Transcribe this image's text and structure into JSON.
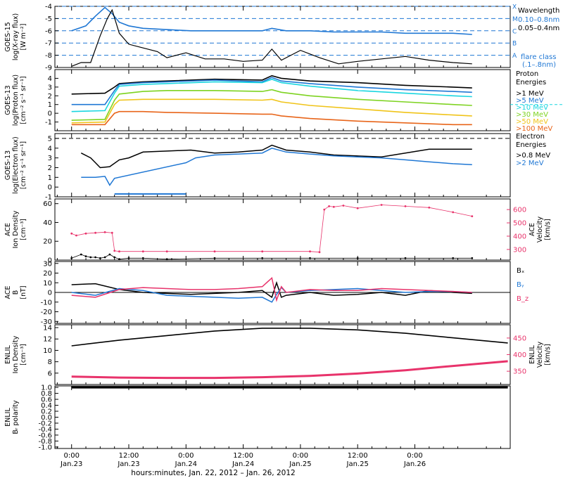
{
  "chart_data": [
    {
      "type": "line",
      "panel": "goes15_xray",
      "ylabel_lines": [
        "GOES-15",
        "log(X-ray flux)",
        "[W m⁻²]"
      ],
      "ylim": [
        -9,
        -4
      ],
      "yticks": [
        "-9",
        "-8",
        "-7",
        "-6",
        "-5",
        "-4"
      ],
      "flare_levels": [
        {
          "label": "A",
          "y": -8
        },
        {
          "label": "B",
          "y": -7
        },
        {
          "label": "C",
          "y": -6
        },
        {
          "label": "M",
          "y": -5
        },
        {
          "label": "X",
          "y": -4
        }
      ],
      "legend": {
        "title": "Wavelength",
        "entries": [
          "0.10–0.8nm",
          "0.05–0.4nm"
        ],
        "footer": [
          "flare class",
          "(.1–.8nm)"
        ]
      },
      "series": [
        {
          "name": "0.10–0.8nm",
          "color": "#1f77d4",
          "x": [
            0,
            6,
            10,
            14,
            17,
            20,
            24,
            30,
            40,
            50,
            60,
            70,
            80,
            84,
            90,
            100,
            110,
            120,
            130,
            140,
            150,
            160,
            168
          ],
          "y": [
            -6.0,
            -5.6,
            -4.8,
            -4.1,
            -4.6,
            -5.3,
            -5.6,
            -5.8,
            -5.9,
            -6.0,
            -6.0,
            -6.0,
            -6.0,
            -5.8,
            -6.0,
            -6.0,
            -6.1,
            -6.1,
            -6.1,
            -6.2,
            -6.2,
            -6.2,
            -6.3
          ]
        },
        {
          "name": "0.05–0.4nm",
          "color": "#000000",
          "x": [
            0,
            4,
            8,
            12,
            15,
            17,
            20,
            24,
            28,
            36,
            40,
            48,
            56,
            64,
            72,
            80,
            84,
            88,
            96,
            104,
            112,
            120,
            130,
            140,
            150,
            160,
            168
          ],
          "y": [
            -8.9,
            -8.6,
            -8.6,
            -6.4,
            -5.0,
            -4.3,
            -6.2,
            -7.1,
            -7.3,
            -7.7,
            -8.2,
            -7.8,
            -8.3,
            -8.3,
            -8.5,
            -8.4,
            -7.5,
            -8.4,
            -7.6,
            -8.2,
            -8.7,
            -8.5,
            -8.3,
            -8.1,
            -8.4,
            -8.6,
            -8.7
          ]
        }
      ]
    },
    {
      "type": "line",
      "panel": "goes13_proton",
      "ylabel_lines": [
        "GOES-13",
        "log(Proton flux)",
        "[cm⁻² s⁻¹ sr⁻¹]"
      ],
      "ylim": [
        -2,
        5
      ],
      "yticks": [
        "-1",
        "0",
        "1",
        "2",
        "3",
        "4"
      ],
      "legend": {
        "title": [
          "Proton",
          "Energies"
        ],
        "entries": [
          ">1 MeV",
          ">5 MeV",
          ">10 MeV",
          ">30 MeV",
          ">50 MeV",
          ">100 MeV"
        ]
      },
      "series": [
        {
          "name": ">1 MeV",
          "color": "#000000",
          "x": [
            0,
            14,
            18,
            20,
            30,
            40,
            60,
            80,
            84,
            88,
            100,
            120,
            140,
            160,
            168
          ],
          "y": [
            2.2,
            2.3,
            3.0,
            3.4,
            3.6,
            3.7,
            3.9,
            3.8,
            4.3,
            4.0,
            3.7,
            3.5,
            3.2,
            3.0,
            2.9
          ]
        },
        {
          "name": ">5 MeV",
          "color": "#1f77d4",
          "x": [
            0,
            14,
            18,
            20,
            30,
            40,
            60,
            80,
            84,
            88,
            100,
            120,
            140,
            160,
            168
          ],
          "y": [
            1.0,
            1.0,
            2.6,
            3.3,
            3.5,
            3.6,
            3.8,
            3.6,
            4.1,
            3.7,
            3.4,
            3.0,
            2.7,
            2.5,
            2.4
          ]
        },
        {
          "name": ">10 MeV",
          "color": "#19d6e0",
          "x": [
            0,
            14,
            18,
            20,
            30,
            40,
            60,
            80,
            84,
            88,
            100,
            120,
            140,
            160,
            168
          ],
          "y": [
            0.2,
            0.3,
            2.3,
            3.1,
            3.3,
            3.4,
            3.6,
            3.5,
            3.9,
            3.5,
            3.1,
            2.6,
            2.3,
            2.0,
            1.9
          ]
        },
        {
          "name": ">30 MeV",
          "color": "#7ed321",
          "x": [
            0,
            14,
            18,
            20,
            30,
            40,
            60,
            80,
            84,
            88,
            100,
            120,
            140,
            160,
            168
          ],
          "y": [
            -0.8,
            -0.7,
            1.5,
            2.2,
            2.5,
            2.6,
            2.6,
            2.5,
            2.7,
            2.4,
            2.0,
            1.6,
            1.3,
            1.0,
            0.9
          ]
        },
        {
          "name": ">50 MeV",
          "color": "#f0c419",
          "x": [
            0,
            14,
            18,
            20,
            30,
            40,
            60,
            80,
            84,
            88,
            100,
            120,
            140,
            160,
            168
          ],
          "y": [
            -1.1,
            -1.0,
            1.0,
            1.5,
            1.6,
            1.6,
            1.6,
            1.5,
            1.6,
            1.3,
            0.9,
            0.5,
            0.1,
            -0.2,
            -0.3
          ]
        },
        {
          "name": ">100 MeV",
          "color": "#e8651a",
          "x": [
            0,
            14,
            18,
            20,
            30,
            40,
            60,
            80,
            84,
            88,
            100,
            120,
            140,
            160,
            168
          ],
          "y": [
            -1.3,
            -1.3,
            0.0,
            0.2,
            0.2,
            0.1,
            0.0,
            -0.1,
            -0.1,
            -0.3,
            -0.6,
            -0.9,
            -1.1,
            -1.3,
            -1.3
          ]
        }
      ]
    },
    {
      "type": "line",
      "panel": "goes13_electron",
      "ylabel_lines": [
        "GOES-13",
        "log(Electron flux)",
        "[cm⁻² s⁻¹ sr⁻¹]"
      ],
      "ylim": [
        -1,
        5.5
      ],
      "yticks": [
        "-1",
        "0",
        "1",
        "2",
        "3",
        "4",
        "5"
      ],
      "legend": {
        "title": [
          "Electron",
          "Energies"
        ],
        "entries": [
          ">0.8 MeV",
          ">2 MeV"
        ]
      },
      "series": [
        {
          "name": ">0.8 MeV",
          "color": "#000000",
          "x": [
            4,
            8,
            10,
            12,
            16,
            20,
            24,
            30,
            40,
            50,
            60,
            70,
            80,
            84,
            90,
            100,
            110,
            130,
            140,
            150,
            160,
            168
          ],
          "y": [
            3.5,
            3.0,
            2.5,
            2.0,
            2.1,
            2.8,
            3.0,
            3.6,
            3.7,
            3.8,
            3.5,
            3.6,
            3.8,
            4.3,
            3.8,
            3.6,
            3.3,
            3.1,
            3.5,
            3.9,
            3.9,
            3.9
          ]
        },
        {
          "name": ">2 MeV",
          "color": "#1f77d4",
          "x": [
            4,
            10,
            14,
            16,
            18,
            48,
            52,
            60,
            70,
            80,
            84,
            90,
            100,
            110,
            120,
            130,
            140,
            150,
            160,
            168
          ],
          "y": [
            1.0,
            1.0,
            1.1,
            0.2,
            0.9,
            2.5,
            3.0,
            3.3,
            3.4,
            3.5,
            4.0,
            3.6,
            3.4,
            3.2,
            3.1,
            3.0,
            2.8,
            2.6,
            2.4,
            2.3
          ]
        }
      ],
      "threshold_y": 5.0,
      "low_segment": {
        "color": "#1f77d4",
        "x": [
          18,
          48
        ],
        "y": -0.7
      }
    },
    {
      "type": "scatter",
      "panel": "ace_plasma",
      "ylabel_lines": [
        "ACE",
        "Ion Density",
        "[cm⁻³]"
      ],
      "ylim_left": [
        0,
        65
      ],
      "yticks_left": [
        "0",
        "20",
        "40",
        "60"
      ],
      "ylabel_right_lines": [
        "ACE",
        "Velocity",
        "[km/s]"
      ],
      "ylim_right": [
        220,
        680
      ],
      "yticks_right": [
        "300",
        "400",
        "500",
        "600"
      ],
      "series": [
        {
          "name": "Ion Density",
          "color": "#000000",
          "axis": "left",
          "x": [
            0,
            4,
            6,
            8,
            10,
            12,
            14,
            16,
            18,
            20,
            24,
            30,
            40,
            60,
            80,
            100,
            120,
            140,
            160,
            168
          ],
          "y": [
            2,
            6,
            4,
            3,
            3,
            2,
            3,
            6,
            3,
            1,
            2,
            2,
            1,
            2,
            2,
            2,
            2,
            2,
            2,
            2
          ]
        },
        {
          "name": "Velocity",
          "color": "#e8336b",
          "axis": "right",
          "x": [
            0,
            2,
            6,
            10,
            14,
            17,
            18,
            20,
            30,
            40,
            60,
            80,
            100,
            104,
            106,
            108,
            110,
            114,
            120,
            130,
            140,
            150,
            160,
            168
          ],
          "y": [
            420,
            405,
            420,
            425,
            430,
            425,
            290,
            285,
            285,
            285,
            285,
            285,
            285,
            280,
            600,
            625,
            620,
            630,
            610,
            635,
            625,
            615,
            580,
            550
          ]
        }
      ]
    },
    {
      "type": "line",
      "panel": "ace_mag",
      "ylabel_lines": [
        "ACE",
        "B",
        "[nT]"
      ],
      "ylim": [
        -32,
        32
      ],
      "yticks": [
        "-30",
        "-20",
        "-10",
        "0",
        "10",
        "20",
        "30"
      ],
      "legend_entries": [
        {
          "label": "Bₓ",
          "color": "#000000"
        },
        {
          "label": "Bᵧ",
          "color": "#1f77d4"
        },
        {
          "label": "B_z",
          "color": "#e8336b"
        }
      ],
      "series": [
        {
          "name": "Bₓ",
          "color": "#000000",
          "x": [
            0,
            10,
            20,
            30,
            40,
            50,
            60,
            70,
            80,
            84,
            86,
            88,
            90,
            100,
            110,
            120,
            130,
            140,
            150,
            160,
            168
          ],
          "y": [
            8,
            9,
            3,
            0,
            -1,
            -2,
            -1,
            0,
            2,
            -5,
            10,
            -5,
            -3,
            0,
            -3,
            -2,
            0,
            -3,
            2,
            0,
            -1
          ]
        },
        {
          "name": "Bᵧ",
          "color": "#1f77d4",
          "x": [
            0,
            10,
            20,
            30,
            40,
            50,
            60,
            70,
            80,
            84,
            86,
            88,
            90,
            100,
            110,
            120,
            130,
            140,
            150,
            160,
            168
          ],
          "y": [
            0,
            -3,
            4,
            2,
            -3,
            -4,
            -5,
            -6,
            -5,
            -10,
            -2,
            5,
            0,
            2,
            3,
            4,
            2,
            0,
            1,
            1,
            0
          ]
        },
        {
          "name": "B_z",
          "color": "#e8336b",
          "x": [
            0,
            10,
            20,
            30,
            40,
            50,
            60,
            70,
            80,
            84,
            86,
            88,
            90,
            100,
            110,
            120,
            130,
            140,
            150,
            160,
            168
          ],
          "y": [
            -3,
            -5,
            3,
            5,
            4,
            3,
            3,
            4,
            6,
            15,
            -8,
            6,
            0,
            3,
            2,
            2,
            4,
            3,
            2,
            1,
            0
          ]
        }
      ]
    },
    {
      "type": "line",
      "panel": "enlil_plasma",
      "ylabel_lines": [
        "ENLIL",
        "Ion Density",
        "[cm⁻³]"
      ],
      "ylim_left": [
        4,
        14.5
      ],
      "yticks_left": [
        "6",
        "8",
        "10",
        "12",
        "14"
      ],
      "ylabel_right_lines": [
        "ENLIL",
        "Velocity",
        "[km/s]"
      ],
      "ylim_right": [
        310,
        490
      ],
      "yticks_right": [
        "350",
        "400",
        "450"
      ],
      "series": [
        {
          "name": "Density",
          "color": "#000000",
          "axis": "left",
          "x": [
            0,
            20,
            40,
            60,
            80,
            100,
            120,
            140,
            160,
            183
          ],
          "y": [
            10.8,
            11.8,
            12.6,
            13.4,
            13.9,
            13.9,
            13.6,
            13.0,
            12.2,
            11.3
          ]
        },
        {
          "name": "Velocity",
          "color": "#e8336b",
          "axis": "right",
          "x": [
            0,
            20,
            40,
            60,
            80,
            100,
            120,
            140,
            160,
            183
          ],
          "y": [
            334,
            331,
            330,
            330,
            332,
            336,
            343,
            353,
            366,
            380
          ]
        }
      ]
    },
    {
      "type": "line",
      "panel": "enlil_polarity",
      "ylabel_lines": [
        "ENLIL",
        "Bᵣ polarity"
      ],
      "ylim": [
        -1.05,
        1.05
      ],
      "yticks": [
        "-1.0",
        "-0.8",
        "-0.6",
        "-0.4",
        "-0.2",
        "0.0",
        "0.2",
        "0.4",
        "0.6",
        "0.8",
        "1.0"
      ],
      "series": [
        {
          "name": "Bᵣ polarity",
          "color": "#000000",
          "x": [
            0,
            183
          ],
          "y": [
            1,
            1
          ]
        }
      ]
    }
  ],
  "time_axis": {
    "range_hours": [
      -7,
      184
    ],
    "ticks": [
      {
        "h": 0,
        "time": "0:00",
        "date": "Jan.23"
      },
      {
        "h": 24,
        "time": "12:00",
        "date": "Jan.23"
      },
      {
        "h": 48,
        "time": "0:00",
        "date": "Jan.24"
      },
      {
        "h": 72,
        "time": "12:00",
        "date": "Jan.24"
      },
      {
        "h": 96,
        "time": "0:00",
        "date": "Jan.25"
      },
      {
        "h": 120,
        "time": "12:00",
        "date": "Jan.25"
      },
      {
        "h": 144,
        "time": "0:00",
        "date": "Jan.26"
      }
    ],
    "xlabel": "hours:minutes, Jan. 22, 2012 – Jan. 26, 2012"
  }
}
